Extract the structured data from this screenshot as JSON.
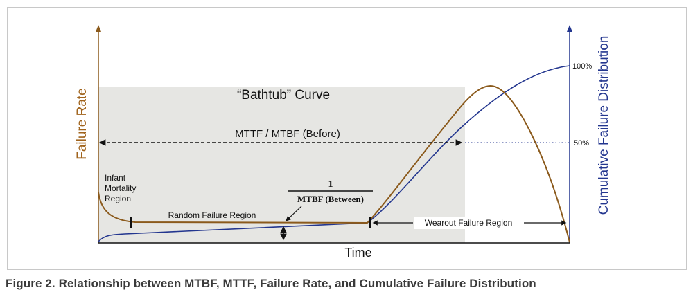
{
  "figure": {
    "title": "“Bathtub” Curve",
    "y_left_label": "Failure Rate",
    "y_right_label": "Cumulative Failure Distribution",
    "x_label": "Time",
    "right_ticks": [
      "100%",
      "50%"
    ],
    "mttf_label": "MTTF / MTBF (Before)",
    "fraction_numerator": "1",
    "fraction_denominator": "MTBF (Between)",
    "infant_region": [
      "Infant",
      "Mortality",
      "Region"
    ],
    "random_region": "Random Failure Region",
    "wearout_region": "Wearout Failure Region",
    "colors": {
      "failure_rate": "#8b5a1c",
      "cumulative": "#23368f",
      "shaded_region": "#e6e6e3",
      "axis_right": "#23368f",
      "text_left_axis": "#a0631c"
    }
  },
  "caption": "Figure 2. Relationship between MTBF, MTTF, Failure Rate, and Cumulative Failure Distribution"
}
